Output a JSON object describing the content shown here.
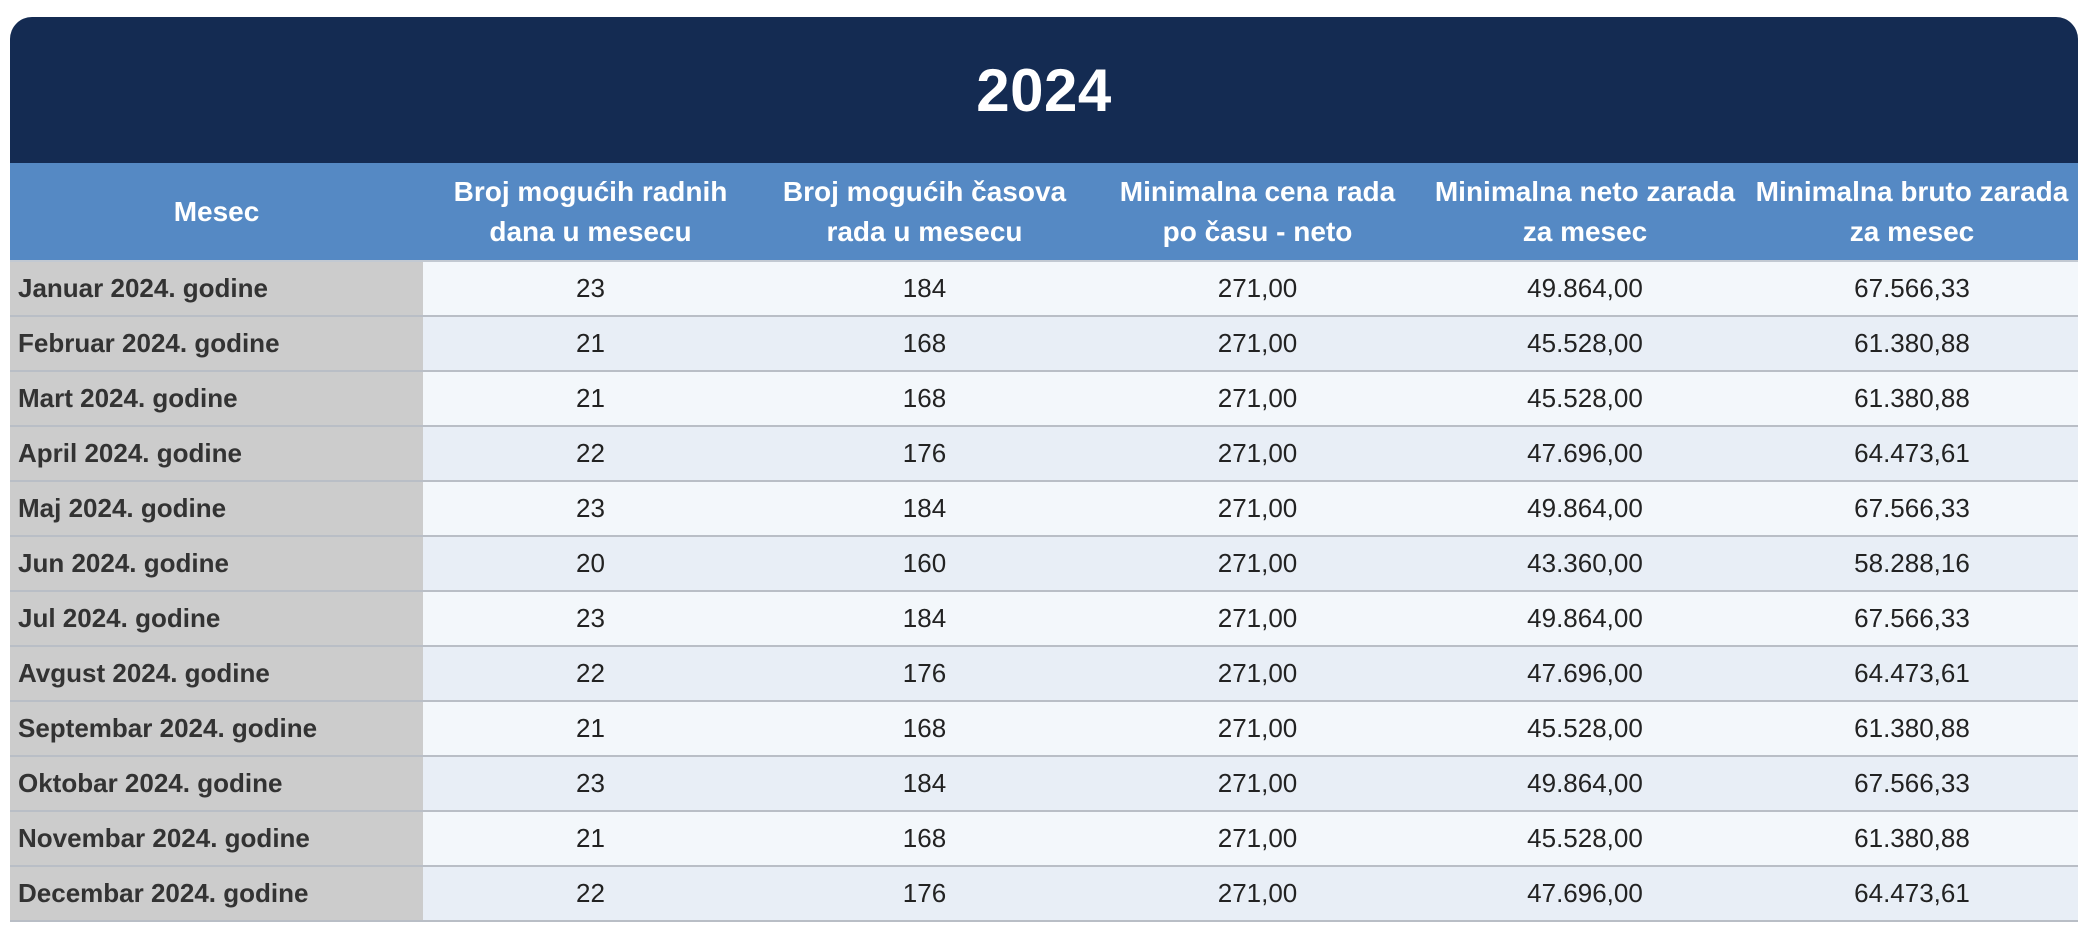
{
  "title": "2024",
  "headers": [
    "Mesec",
    "Broj mogućih radnih dana u mesecu",
    "Broj mogućih časova rada u mesecu",
    "Minimalna cena rada po času - neto",
    "Minimalna neto zarada za mesec",
    "Minimalna bruto zarada za mesec"
  ],
  "rows": [
    [
      "Januar 2024. godine",
      "23",
      "184",
      "271,00",
      "49.864,00",
      "67.566,33"
    ],
    [
      "Februar 2024. godine",
      "21",
      "168",
      "271,00",
      "45.528,00",
      "61.380,88"
    ],
    [
      "Mart 2024. godine",
      "21",
      "168",
      "271,00",
      "45.528,00",
      "61.380,88"
    ],
    [
      "April 2024. godine",
      "22",
      "176",
      "271,00",
      "47.696,00",
      "64.473,61"
    ],
    [
      "Maj 2024. godine",
      "23",
      "184",
      "271,00",
      "49.864,00",
      "67.566,33"
    ],
    [
      "Jun 2024. godine",
      "20",
      "160",
      "271,00",
      "43.360,00",
      "58.288,16"
    ],
    [
      "Jul 2024. godine",
      "23",
      "184",
      "271,00",
      "49.864,00",
      "67.566,33"
    ],
    [
      "Avgust 2024. godine",
      "22",
      "176",
      "271,00",
      "47.696,00",
      "64.473,61"
    ],
    [
      "Septembar 2024. godine",
      "21",
      "168",
      "271,00",
      "45.528,00",
      "61.380,88"
    ],
    [
      "Oktobar 2024. godine",
      "23",
      "184",
      "271,00",
      "49.864,00",
      "67.566,33"
    ],
    [
      "Novembar 2024. godine",
      "21",
      "168",
      "271,00",
      "45.528,00",
      "61.380,88"
    ],
    [
      "Decembar 2024. godine",
      "22",
      "176",
      "271,00",
      "47.696,00",
      "64.473,61"
    ]
  ],
  "colors": {
    "title_bg": "#142b52",
    "header_bg": "#5589c4",
    "month_col_bg": "#cccccc"
  }
}
